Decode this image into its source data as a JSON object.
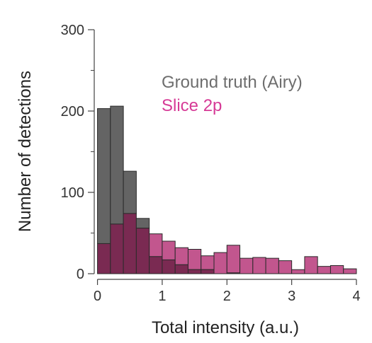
{
  "chart_data": {
    "type": "bar",
    "subtype": "overlapping-histogram",
    "xlabel": "Total intensity (a.u.)",
    "ylabel": "Number of detections",
    "xlim": [
      -0.05,
      4.0
    ],
    "ylim": [
      0,
      300
    ],
    "xticks": [
      0,
      1,
      2,
      3,
      4
    ],
    "yticks": [
      0,
      100,
      200,
      300
    ],
    "y_minor_ticks": [
      50,
      150,
      250
    ],
    "bin_width": 0.2,
    "bin_starts": [
      0.0,
      0.2,
      0.4,
      0.6,
      0.8,
      1.0,
      1.2,
      1.4,
      1.6,
      1.8,
      2.0,
      2.2,
      2.4,
      2.6,
      2.8,
      3.0,
      3.2,
      3.4,
      3.6,
      3.8
    ],
    "grid": false,
    "legend_position": "top-right",
    "series": [
      {
        "name": "Ground truth (Airy)",
        "color": "#646464",
        "values": [
          203,
          206,
          126,
          68,
          21,
          17,
          11,
          5,
          5,
          0,
          1,
          0,
          0,
          0,
          0,
          0,
          0,
          0,
          0,
          0
        ]
      },
      {
        "name": "Slice 2p",
        "color": "#c2568e",
        "values": [
          37,
          61,
          74,
          56,
          49,
          40,
          32,
          30,
          22,
          26,
          35,
          19,
          20,
          19,
          16,
          5,
          21,
          9,
          10,
          6
        ]
      }
    ],
    "overlap_color": "#7a2a52",
    "legend_colors": [
      "#6e6e6e",
      "#d63a96"
    ]
  }
}
